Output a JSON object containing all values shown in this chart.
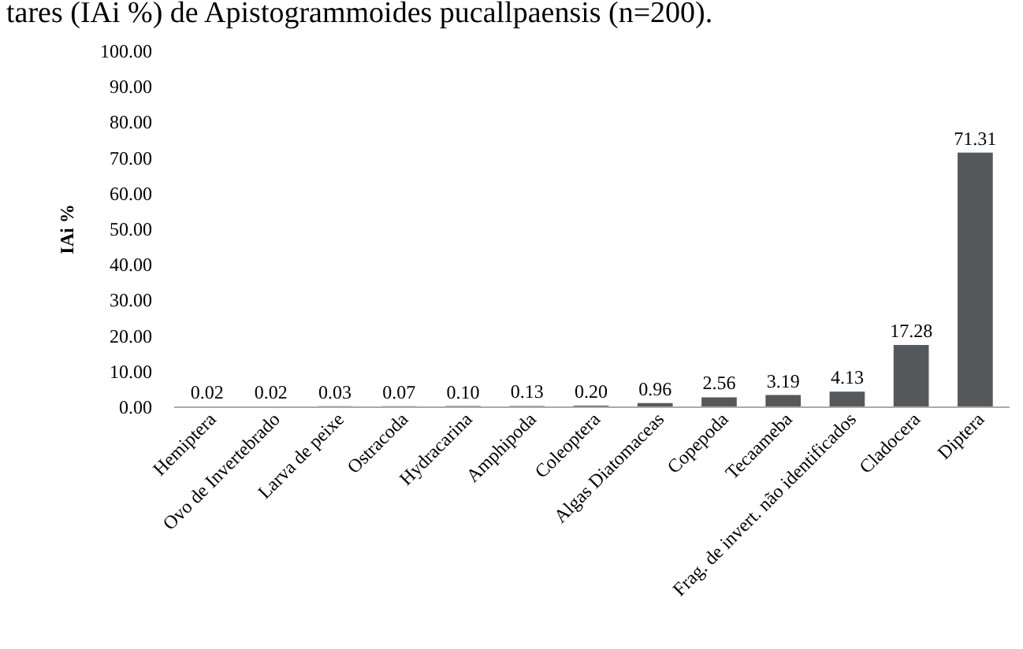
{
  "chart_data": {
    "type": "bar",
    "title": "tares (IAi %) de Apistogrammoides pucallpaensis (n=200).",
    "ylabel": "IAi %",
    "categories": [
      "Hemiptera",
      "Ovo de Invertebrado",
      "Larva de peixe",
      "Ostracoda",
      "Hydracarina",
      "Amphipoda",
      "Coleoptera",
      "Algas Diatomaceas",
      "Copepoda",
      "Tecaameba",
      "Frag. de invert. não identificados",
      "Cladocera",
      "Diptera"
    ],
    "values": [
      0.02,
      0.02,
      0.03,
      0.07,
      0.1,
      0.13,
      0.2,
      0.96,
      2.56,
      3.19,
      4.13,
      17.28,
      71.31
    ],
    "value_labels": [
      "0.02",
      "0.02",
      "0.03",
      "0.07",
      "0.10",
      "0.13",
      "0.20",
      "0.96",
      "2.56",
      "3.19",
      "4.13",
      "17.28",
      "71.31"
    ],
    "color": "#55595b",
    "ylim": [
      0,
      100
    ],
    "yticks": [
      {
        "value": 0,
        "label": "0.00"
      },
      {
        "value": 10,
        "label": "10.00"
      },
      {
        "value": 20,
        "label": "20.00"
      },
      {
        "value": 30,
        "label": "30.00"
      },
      {
        "value": 40,
        "label": "40.00"
      },
      {
        "value": 50,
        "label": "50.00"
      },
      {
        "value": 60,
        "label": "60.00"
      },
      {
        "value": 70,
        "label": "70.00"
      },
      {
        "value": 80,
        "label": "80.00"
      },
      {
        "value": 90,
        "label": "90.00"
      },
      {
        "value": 100,
        "label": "100.00"
      }
    ],
    "grid": false
  }
}
